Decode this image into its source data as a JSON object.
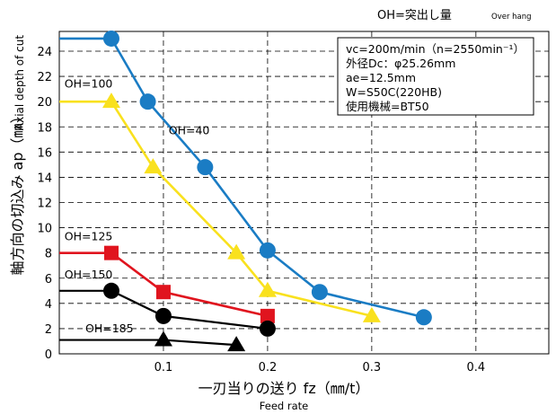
{
  "header": {
    "text": "OH=突出し量",
    "small": "Over hang"
  },
  "conditions": {
    "lines": [
      "vc=200m/min（n=2550min⁻¹）",
      "外径Dc：φ25.26mm",
      "ae=12.5mm",
      "W=S50C(220HB)",
      "使用機械=BT50"
    ]
  },
  "chart_data": {
    "type": "line",
    "xlabel": "一刃当りの送り fz（㎜/t）",
    "xlabel_en": "Feed rate",
    "ylabel": "軸方向の切込み ap（㎜）",
    "ylabel_en": "Axial depth of cut",
    "xlim": [
      0,
      0.47
    ],
    "ylim": [
      0,
      26
    ],
    "xticks": [
      0.1,
      0.2,
      0.3,
      0.4
    ],
    "xtick_labels": [
      "0.1",
      "0.2",
      "0.3",
      "0.4"
    ],
    "yticks": [
      0,
      2,
      4,
      6,
      8,
      10,
      12,
      14,
      16,
      18,
      20,
      22,
      24
    ],
    "ytick_labels": [
      "0",
      "2",
      "4",
      "6",
      "8",
      "10",
      "12",
      "14",
      "16",
      "18",
      "20",
      "22",
      "24"
    ],
    "grid": true,
    "series": [
      {
        "name": "OH=40",
        "color": "#1a7cc4",
        "marker": "circle",
        "lead": {
          "from": 0,
          "value": 25
        },
        "points": [
          [
            0.05,
            25
          ],
          [
            0.085,
            20
          ],
          [
            0.14,
            14.8
          ],
          [
            0.2,
            8.2
          ],
          [
            0.25,
            4.9
          ],
          [
            0.35,
            2.9
          ]
        ]
      },
      {
        "name": "OH=100",
        "color": "#f9e11e",
        "marker": "triangle",
        "lead": {
          "from": 0,
          "value": 20
        },
        "points": [
          [
            0.05,
            20
          ],
          [
            0.09,
            14.8
          ],
          [
            0.17,
            8
          ],
          [
            0.2,
            5
          ],
          [
            0.3,
            3
          ]
        ]
      },
      {
        "name": "OH=125",
        "color": "#e0141e",
        "marker": "square",
        "lead": {
          "from": 0,
          "value": 8
        },
        "points": [
          [
            0.05,
            8
          ],
          [
            0.1,
            4.9
          ],
          [
            0.2,
            3
          ]
        ]
      },
      {
        "name": "OH=150",
        "color": "#000000",
        "marker": "circle",
        "lead": {
          "from": 0,
          "value": 5
        },
        "points": [
          [
            0.05,
            5
          ],
          [
            0.1,
            3
          ],
          [
            0.2,
            2
          ]
        ]
      },
      {
        "name": "OH=185",
        "color": "#000000",
        "marker": "triangle",
        "lead": {
          "from": 0,
          "value": 1.1
        },
        "points": [
          [
            0.1,
            1.1
          ],
          [
            0.17,
            0.7
          ]
        ]
      }
    ],
    "labels": [
      {
        "text": "OH=40",
        "x": 0.105,
        "y": 17.4
      },
      {
        "text": "OH=100",
        "x": 0.005,
        "y": 21.1
      },
      {
        "text": "OH=125",
        "x": 0.005,
        "y": 9.0
      },
      {
        "text": "OH=150",
        "x": 0.005,
        "y": 6.0
      },
      {
        "text": "OH=185",
        "x": 0.025,
        "y": 1.7
      }
    ]
  }
}
